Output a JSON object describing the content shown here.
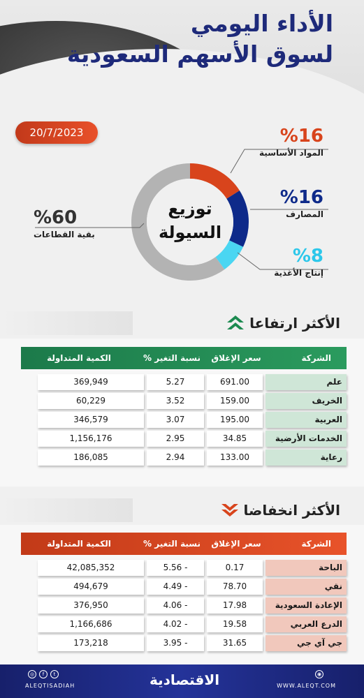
{
  "header": {
    "title_line1": "الأداء اليومي",
    "title_line2": "لسوق الأسهم السعودية",
    "date": "20/7/2023"
  },
  "liquidity": {
    "center_line1": "توزيع",
    "center_line2": "السيولة",
    "slices": [
      {
        "label": "المواد الأساسية",
        "pct_text": "%16",
        "value": 16,
        "color": "#d8441c"
      },
      {
        "label": "المصارف",
        "pct_text": "%16",
        "value": 16,
        "color": "#0e2a8a"
      },
      {
        "label": "إنتاج الأغذية",
        "pct_text": "%8",
        "value": 8,
        "color": "#4ad6f2"
      },
      {
        "label": "بقية القطاعات",
        "pct_text": "%60",
        "value": 60,
        "color": "#b3b3b3"
      }
    ]
  },
  "gainers": {
    "title": "الأكثر ارتفاعا",
    "headers": {
      "company": "الشركة",
      "close": "سعر الإغلاق",
      "change": "نسبة التغير %",
      "volume": "الكمية المتداولة"
    },
    "rows": [
      {
        "company": "علم",
        "close": "691.00",
        "change": "5.27",
        "volume": "369,949"
      },
      {
        "company": "الخريف",
        "close": "159.00",
        "change": "3.52",
        "volume": "60,229"
      },
      {
        "company": "العربية",
        "close": "195.00",
        "change": "3.07",
        "volume": "346,579"
      },
      {
        "company": "الخدمات الأرضية",
        "close": "34.85",
        "change": "2.95",
        "volume": "1,156,176"
      },
      {
        "company": "رعاية",
        "close": "133.00",
        "change": "2.94",
        "volume": "186,085"
      }
    ]
  },
  "losers": {
    "title": "الأكثر انخفاضا",
    "headers": {
      "company": "الشركة",
      "close": "سعر الإغلاق",
      "change": "نسبة التغير %",
      "volume": "الكمية المتداولة"
    },
    "rows": [
      {
        "company": "الباحة",
        "close": "0.17",
        "change": "5.56 -",
        "volume": "42,085,352"
      },
      {
        "company": "نقي",
        "close": "78.70",
        "change": "4.49 -",
        "volume": "494,679"
      },
      {
        "company": "الإعادة السعودية",
        "close": "17.98",
        "change": "4.06 -",
        "volume": "376,950"
      },
      {
        "company": "الدرع العربي",
        "close": "19.58",
        "change": "4.02 -",
        "volume": "1,166,686"
      },
      {
        "company": "جي آي جي",
        "close": "31.65",
        "change": "3.95 -",
        "volume": "173,218"
      }
    ]
  },
  "footer": {
    "social_handle": "ALEQTISADIAH",
    "logo": "الاقتصادية",
    "website": "WWW.ALEQT.COM",
    "icons": [
      "instagram-icon",
      "facebook-icon",
      "twitter-icon",
      "globe-icon"
    ]
  }
}
